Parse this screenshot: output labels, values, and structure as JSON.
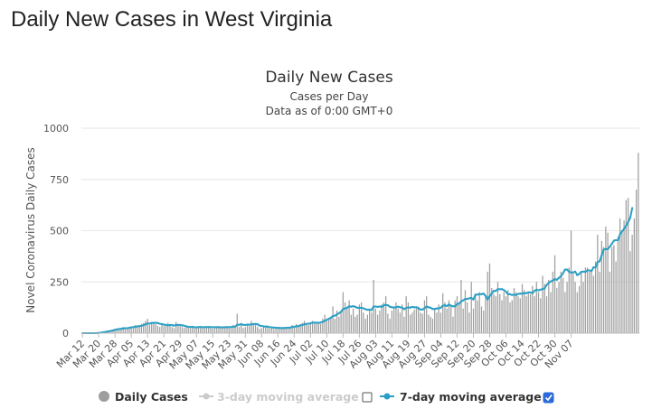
{
  "page": {
    "heading": "Daily New Cases in West Virginia"
  },
  "colors": {
    "bars": "#9e9e9e",
    "avg7": "#2b9fc4",
    "avg3_disabled": "#cccccc",
    "checkbox_checked": "#2b6ad8",
    "grid": "#e6e6e6"
  },
  "legend": {
    "daily_cases": "Daily Cases",
    "avg3": "3-day moving average",
    "avg3_checked": false,
    "avg7": "7-day moving average",
    "avg7_checked": true
  },
  "chart_data": {
    "type": "bar",
    "title": "Daily New Cases",
    "subtitle_lines": [
      "Cases per Day",
      "Data as of 0:00 GMT+0"
    ],
    "xlabel": "",
    "ylabel": "Novel Coronavirus Daily Cases",
    "ylim": [
      0,
      1000
    ],
    "yticks": [
      0,
      250,
      500,
      750,
      1000
    ],
    "x_start": "Mar 12",
    "x_end": "Nov 12",
    "xticks": [
      "Mar 12",
      "Mar 20",
      "Mar 28",
      "Apr 05",
      "Apr 13",
      "Apr 21",
      "Apr 29",
      "May 07",
      "May 15",
      "May 23",
      "May 31",
      "Jun 08",
      "Jun 16",
      "Jun 24",
      "Jul 02",
      "Jul 10",
      "Jul 18",
      "Jul 26",
      "Aug 03",
      "Aug 11",
      "Aug 19",
      "Aug 27",
      "Sep 04",
      "Sep 12",
      "Sep 20",
      "Sep 28",
      "Oct 06",
      "Oct 14",
      "Oct 22",
      "Oct 30",
      "Nov 07"
    ],
    "grid": true,
    "series": [
      {
        "name": "Daily Cases",
        "style": "bar",
        "values": [
          0,
          0,
          0,
          0,
          0,
          0,
          0,
          0,
          1,
          2,
          5,
          6,
          10,
          12,
          15,
          18,
          20,
          22,
          25,
          20,
          30,
          28,
          20,
          25,
          30,
          35,
          40,
          38,
          32,
          45,
          50,
          60,
          70,
          40,
          55,
          50,
          45,
          35,
          30,
          40,
          35,
          38,
          50,
          40,
          30,
          25,
          55,
          45,
          35,
          30,
          25,
          30,
          28,
          25,
          30,
          32,
          28,
          35,
          30,
          25,
          28,
          30,
          30,
          25,
          22,
          28,
          26,
          35,
          30,
          25,
          28,
          35,
          30,
          25,
          40,
          35,
          95,
          30,
          50,
          25,
          30,
          45,
          35,
          60,
          40,
          40,
          30,
          20,
          25,
          30,
          30,
          28,
          22,
          25,
          20,
          20,
          25,
          30,
          25,
          30,
          28,
          25,
          30,
          40,
          35,
          45,
          40,
          45,
          50,
          60,
          45,
          40,
          50,
          60,
          50,
          55,
          50,
          45,
          70,
          90,
          60,
          70,
          80,
          130,
          70,
          110,
          80,
          100,
          200,
          150,
          120,
          160,
          90,
          120,
          80,
          90,
          140,
          150,
          100,
          70,
          90,
          120,
          100,
          260,
          120,
          90,
          110,
          140,
          150,
          180,
          95,
          70,
          110,
          130,
          150,
          120,
          100,
          140,
          80,
          180,
          150,
          90,
          100,
          115,
          120,
          130,
          100,
          95,
          160,
          180,
          90,
          80,
          70,
          120,
          100,
          140,
          100,
          195,
          150,
          120,
          160,
          130,
          80,
          160,
          180,
          150,
          260,
          120,
          210,
          150,
          100,
          250,
          120,
          190,
          160,
          200,
          130,
          110,
          180,
          300,
          340,
          220,
          190,
          180,
          250,
          190,
          160,
          200,
          180,
          210,
          150,
          160,
          220,
          200,
          180,
          170,
          240,
          210,
          180,
          200,
          190,
          230,
          180,
          250,
          200,
          170,
          280,
          240,
          180,
          260,
          200,
          300,
          380,
          220,
          250,
          300,
          270,
          200,
          250,
          320,
          500,
          300,
          250,
          200,
          230,
          300,
          250,
          320,
          320,
          300,
          300,
          280,
          350,
          480,
          300,
          450,
          420,
          520,
          490,
          300,
          420,
          430,
          350,
          470,
          560,
          500,
          550,
          650,
          660,
          400,
          480,
          560,
          700,
          880
        ],
        "note": "approximate readings from the chart, one value per day"
      },
      {
        "name": "7-day moving average",
        "style": "line-marker",
        "values": [
          0,
          0,
          0,
          0,
          0,
          0,
          0,
          0,
          1,
          2,
          4,
          5,
          7,
          9,
          11,
          13,
          16,
          18,
          20,
          21,
          23,
          24,
          24,
          26,
          28,
          29,
          31,
          33,
          34,
          36,
          39,
          43,
          47,
          47,
          49,
          50,
          51,
          49,
          46,
          44,
          42,
          40,
          38,
          40,
          39,
          37,
          39,
          40,
          40,
          38,
          36,
          33,
          31,
          30,
          31,
          29,
          28,
          29,
          30,
          29,
          29,
          30,
          30,
          29,
          29,
          29,
          29,
          29,
          28,
          28,
          29,
          29,
          29,
          30,
          31,
          32,
          41,
          41,
          44,
          40,
          40,
          42,
          41,
          43,
          44,
          45,
          43,
          37,
          35,
          33,
          32,
          32,
          29,
          28,
          27,
          26,
          26,
          25,
          25,
          25,
          26,
          26,
          27,
          30,
          31,
          33,
          34,
          37,
          40,
          43,
          45,
          46,
          48,
          51,
          51,
          51,
          50,
          52,
          55,
          60,
          65,
          70,
          75,
          83,
          85,
          92,
          97,
          104,
          118,
          120,
          124,
          131,
          129,
          132,
          128,
          124,
          123,
          124,
          121,
          117,
          114,
          114,
          113,
          130,
          130,
          128,
          130,
          128,
          136,
          138,
          136,
          129,
          126,
          125,
          126,
          129,
          126,
          125,
          117,
          123,
          126,
          124,
          128,
          126,
          126,
          122,
          115,
          115,
          122,
          130,
          126,
          124,
          118,
          118,
          120,
          121,
          124,
          134,
          136,
          132,
          140,
          134,
          131,
          131,
          142,
          144,
          155,
          160,
          167,
          167,
          170,
          172,
          164,
          188,
          188,
          190,
          190,
          193,
          182,
          164,
          180,
          192,
          206,
          206,
          215,
          214,
          215,
          210,
          202,
          190,
          190,
          186,
          188,
          186,
          191,
          193,
          193,
          195,
          195,
          199,
          199,
          195,
          206,
          212,
          209,
          212,
          215,
          219,
          235,
          245,
          252,
          257,
          264,
          260,
          270,
          277,
          292,
          310,
          310,
          300,
          295,
          297,
          300,
          283,
          289,
          299,
          300,
          299,
          307,
          306,
          303,
          321,
          321,
          346,
          351,
          380,
          408,
          410,
          410,
          422,
          436,
          451,
          454,
          453,
          482,
          496,
          509,
          524,
          542,
          562,
          610
        ],
        "note": "approximate readings from the chart, one value per day"
      }
    ],
    "annotations": []
  }
}
